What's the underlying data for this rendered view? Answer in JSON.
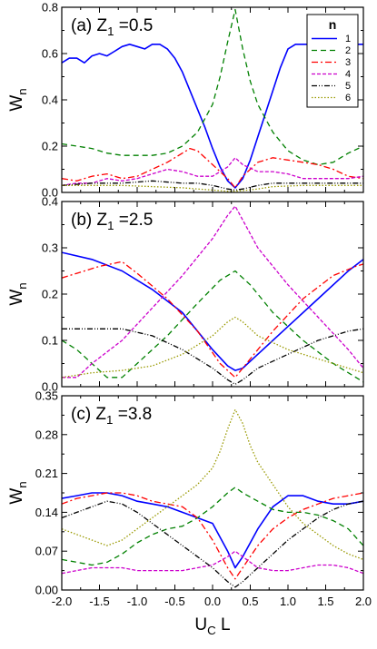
{
  "chart_data": [
    {
      "type": "line",
      "panel_label": "(a) Z",
      "panel_sub": "1",
      "panel_value": " =0.5",
      "ylabel": "W",
      "ylabel_sub": "n",
      "ylim": [
        0,
        0.8
      ],
      "yticks": [
        0.0,
        0.2,
        0.4,
        0.6,
        0.8
      ],
      "ytick_labels": [
        "0.0",
        "0.2",
        "0.4",
        "0.6",
        "0.8"
      ],
      "xlim": [
        -2.0,
        2.0
      ],
      "legend": {
        "title": "n",
        "placement": "top-right",
        "entries": [
          "1",
          "2",
          "3",
          "4",
          "5",
          "6"
        ]
      },
      "series": [
        {
          "name": "1",
          "color": "#0000ff",
          "dash": "",
          "x": [
            -2.0,
            -1.9,
            -1.8,
            -1.7,
            -1.6,
            -1.5,
            -1.4,
            -1.3,
            -1.2,
            -1.1,
            -1.0,
            -0.9,
            -0.8,
            -0.7,
            -0.6,
            -0.5,
            -0.4,
            -0.3,
            -0.2,
            -0.1,
            0.0,
            0.1,
            0.2,
            0.3,
            0.4,
            0.5,
            0.6,
            0.7,
            0.8,
            0.9,
            1.0,
            1.1,
            1.2,
            1.4,
            1.6,
            1.8,
            2.0
          ],
          "y": [
            0.56,
            0.58,
            0.58,
            0.56,
            0.59,
            0.6,
            0.59,
            0.61,
            0.63,
            0.64,
            0.63,
            0.62,
            0.64,
            0.64,
            0.62,
            0.58,
            0.52,
            0.44,
            0.36,
            0.28,
            0.19,
            0.11,
            0.05,
            0.02,
            0.06,
            0.14,
            0.24,
            0.34,
            0.44,
            0.54,
            0.62,
            0.64,
            0.64,
            0.64,
            0.64,
            0.64,
            0.64
          ]
        },
        {
          "name": "2",
          "color": "#008000",
          "dash": "6,4",
          "x": [
            -2.0,
            -1.8,
            -1.6,
            -1.4,
            -1.2,
            -1.0,
            -0.8,
            -0.6,
            -0.4,
            -0.2,
            0.0,
            0.1,
            0.2,
            0.3,
            0.4,
            0.5,
            0.6,
            0.8,
            1.0,
            1.2,
            1.4,
            1.6,
            1.8,
            2.0
          ],
          "y": [
            0.21,
            0.2,
            0.19,
            0.17,
            0.16,
            0.16,
            0.16,
            0.17,
            0.2,
            0.26,
            0.38,
            0.5,
            0.65,
            0.79,
            0.62,
            0.48,
            0.38,
            0.26,
            0.18,
            0.14,
            0.12,
            0.13,
            0.17,
            0.2
          ]
        },
        {
          "name": "3",
          "color": "#ff0000",
          "dash": "7,3,2,3",
          "x": [
            -2.0,
            -1.8,
            -1.6,
            -1.4,
            -1.2,
            -1.0,
            -0.8,
            -0.6,
            -0.4,
            -0.3,
            -0.2,
            0.0,
            0.2,
            0.3,
            0.4,
            0.6,
            0.8,
            1.0,
            1.2,
            1.4,
            1.6,
            1.8,
            2.0
          ],
          "y": [
            0.06,
            0.05,
            0.07,
            0.08,
            0.06,
            0.07,
            0.1,
            0.13,
            0.17,
            0.19,
            0.18,
            0.12,
            0.06,
            0.02,
            0.07,
            0.13,
            0.15,
            0.14,
            0.13,
            0.12,
            0.1,
            0.07,
            0.06
          ]
        },
        {
          "name": "4",
          "color": "#cc00cc",
          "dash": "4,2",
          "x": [
            -2.0,
            -1.8,
            -1.6,
            -1.4,
            -1.2,
            -1.0,
            -0.8,
            -0.6,
            -0.4,
            -0.2,
            0.0,
            0.2,
            0.3,
            0.4,
            0.6,
            0.8,
            1.0,
            1.2,
            1.4,
            1.6,
            1.8,
            2.0
          ],
          "y": [
            0.03,
            0.04,
            0.04,
            0.06,
            0.05,
            0.06,
            0.08,
            0.1,
            0.09,
            0.07,
            0.07,
            0.11,
            0.15,
            0.12,
            0.09,
            0.09,
            0.08,
            0.06,
            0.06,
            0.06,
            0.06,
            0.07
          ]
        },
        {
          "name": "5",
          "color": "#000000",
          "dash": "6,2,1,2,1,2",
          "x": [
            -2.0,
            -1.6,
            -1.2,
            -0.8,
            -0.4,
            -0.2,
            0.0,
            0.2,
            0.3,
            0.4,
            0.6,
            0.8,
            1.2,
            1.6,
            2.0
          ],
          "y": [
            0.03,
            0.04,
            0.04,
            0.05,
            0.04,
            0.04,
            0.03,
            0.015,
            0.01,
            0.015,
            0.03,
            0.04,
            0.04,
            0.04,
            0.04
          ]
        },
        {
          "name": "6",
          "color": "#999900",
          "dash": "1.5,2",
          "x": [
            -2.0,
            -1.6,
            -1.2,
            -0.8,
            -0.4,
            -0.2,
            0.0,
            0.2,
            0.3,
            0.4,
            0.6,
            0.8,
            1.2,
            1.6,
            2.0
          ],
          "y": [
            0.03,
            0.03,
            0.03,
            0.025,
            0.02,
            0.015,
            0.01,
            0.005,
            0.005,
            0.008,
            0.015,
            0.025,
            0.03,
            0.03,
            0.03
          ]
        }
      ]
    },
    {
      "type": "line",
      "panel_label": "(b) Z",
      "panel_sub": "1",
      "panel_value": " =2.5",
      "ylabel": "W",
      "ylabel_sub": "n",
      "ylim": [
        0,
        0.4
      ],
      "yticks": [
        0.0,
        0.1,
        0.2,
        0.3,
        0.4
      ],
      "ytick_labels": [
        "0.0",
        "0.1",
        "0.2",
        "0.3",
        "0.4"
      ],
      "xlim": [
        -2.0,
        2.0
      ],
      "series": [
        {
          "name": "1",
          "color": "#0000ff",
          "dash": "",
          "x": [
            -2.0,
            -1.6,
            -1.2,
            -0.8,
            -0.4,
            0.0,
            0.2,
            0.3,
            0.4,
            0.6,
            1.0,
            1.4,
            1.8,
            2.0
          ],
          "y": [
            0.29,
            0.275,
            0.25,
            0.21,
            0.16,
            0.08,
            0.045,
            0.035,
            0.04,
            0.07,
            0.13,
            0.19,
            0.25,
            0.275
          ]
        },
        {
          "name": "2",
          "color": "#008000",
          "dash": "6,4",
          "x": [
            -2.0,
            -1.8,
            -1.6,
            -1.4,
            -1.2,
            -1.0,
            -0.6,
            -0.2,
            0.1,
            0.3,
            0.5,
            0.8,
            1.2,
            1.6,
            2.0
          ],
          "y": [
            0.1,
            0.08,
            0.05,
            0.02,
            0.02,
            0.05,
            0.11,
            0.18,
            0.23,
            0.25,
            0.22,
            0.16,
            0.1,
            0.05,
            0.01
          ]
        },
        {
          "name": "3",
          "color": "#ff0000",
          "dash": "7,3,2,3",
          "x": [
            -2.0,
            -1.8,
            -1.5,
            -1.2,
            -1.0,
            -0.6,
            -0.2,
            0.1,
            0.3,
            0.5,
            0.8,
            1.2,
            1.6,
            1.9,
            2.0
          ],
          "y": [
            0.235,
            0.245,
            0.26,
            0.27,
            0.245,
            0.19,
            0.12,
            0.05,
            0.02,
            0.06,
            0.12,
            0.19,
            0.24,
            0.26,
            0.265
          ]
        },
        {
          "name": "4",
          "color": "#cc00cc",
          "dash": "4,2",
          "x": [
            -2.0,
            -1.8,
            -1.6,
            -1.2,
            -0.8,
            -0.4,
            0.0,
            0.2,
            0.3,
            0.4,
            0.6,
            1.0,
            1.4,
            1.8,
            2.0
          ],
          "y": [
            0.02,
            0.02,
            0.05,
            0.1,
            0.17,
            0.24,
            0.32,
            0.37,
            0.39,
            0.36,
            0.3,
            0.22,
            0.15,
            0.08,
            0.04
          ]
        },
        {
          "name": "5",
          "color": "#000000",
          "dash": "6,2,1,2,1,2",
          "x": [
            -2.0,
            -1.6,
            -1.2,
            -0.8,
            -0.4,
            0.0,
            0.2,
            0.3,
            0.4,
            0.6,
            1.0,
            1.4,
            1.8,
            2.0
          ],
          "y": [
            0.125,
            0.125,
            0.125,
            0.11,
            0.08,
            0.04,
            0.015,
            0.005,
            0.015,
            0.04,
            0.07,
            0.1,
            0.12,
            0.125
          ]
        },
        {
          "name": "6",
          "color": "#999900",
          "dash": "1.5,2",
          "x": [
            -2.0,
            -1.6,
            -1.2,
            -0.8,
            -0.4,
            0.0,
            0.2,
            0.3,
            0.4,
            0.6,
            1.0,
            1.4,
            1.8,
            2.0
          ],
          "y": [
            0.02,
            0.03,
            0.035,
            0.045,
            0.07,
            0.11,
            0.14,
            0.15,
            0.14,
            0.11,
            0.08,
            0.06,
            0.04,
            0.03
          ]
        }
      ]
    },
    {
      "type": "line",
      "panel_label": "(c) Z",
      "panel_sub": "1",
      "panel_value": " =3.8",
      "ylabel": "W",
      "ylabel_sub": "n",
      "ylim": [
        0,
        0.35
      ],
      "yticks": [
        0.0,
        0.07,
        0.14,
        0.21,
        0.28,
        0.35
      ],
      "ytick_labels": [
        "0.00",
        "0.07",
        "0.14",
        "0.21",
        "0.28",
        "0.35"
      ],
      "xlim": [
        -2.0,
        2.0
      ],
      "xticks": [
        -2.0,
        -1.5,
        -1.0,
        -0.5,
        0.0,
        0.5,
        1.0,
        1.5,
        2.0
      ],
      "xtick_labels": [
        "-2.0",
        "-1.5",
        "-1.0",
        "-0.5",
        "0.0",
        "0.5",
        "1.0",
        "1.5",
        "2.0"
      ],
      "xlabel": "U",
      "xlabel_sub": "C",
      "xlabel_tail": " L",
      "series": [
        {
          "name": "1",
          "color": "#0000ff",
          "dash": "",
          "x": [
            -2.0,
            -1.8,
            -1.6,
            -1.4,
            -1.2,
            -1.0,
            -0.8,
            -0.6,
            -0.4,
            -0.2,
            0.0,
            0.2,
            0.3,
            0.4,
            0.6,
            0.8,
            1.0,
            1.2,
            1.4,
            1.6,
            1.8,
            2.0
          ],
          "y": [
            0.165,
            0.17,
            0.175,
            0.175,
            0.17,
            0.16,
            0.155,
            0.15,
            0.14,
            0.13,
            0.12,
            0.07,
            0.04,
            0.06,
            0.11,
            0.15,
            0.17,
            0.17,
            0.16,
            0.155,
            0.155,
            0.16
          ]
        },
        {
          "name": "2",
          "color": "#008000",
          "dash": "6,4",
          "x": [
            -2.0,
            -1.8,
            -1.6,
            -1.4,
            -1.2,
            -1.0,
            -0.8,
            -0.6,
            -0.4,
            -0.2,
            0.0,
            0.2,
            0.3,
            0.4,
            0.6,
            0.8,
            1.0,
            1.2,
            1.4,
            1.6,
            1.8,
            2.0
          ],
          "y": [
            0.055,
            0.05,
            0.045,
            0.05,
            0.065,
            0.085,
            0.1,
            0.11,
            0.115,
            0.13,
            0.15,
            0.175,
            0.185,
            0.175,
            0.16,
            0.145,
            0.14,
            0.14,
            0.135,
            0.125,
            0.11,
            0.08
          ]
        },
        {
          "name": "3",
          "color": "#ff0000",
          "dash": "7,3,2,3",
          "x": [
            -2.0,
            -1.8,
            -1.6,
            -1.4,
            -1.2,
            -1.0,
            -0.8,
            -0.6,
            -0.4,
            -0.2,
            0.0,
            0.2,
            0.3,
            0.4,
            0.6,
            0.8,
            1.0,
            1.2,
            1.4,
            1.6,
            1.8,
            2.0
          ],
          "y": [
            0.155,
            0.165,
            0.17,
            0.175,
            0.175,
            0.17,
            0.16,
            0.155,
            0.15,
            0.13,
            0.09,
            0.04,
            0.02,
            0.04,
            0.08,
            0.11,
            0.13,
            0.145,
            0.155,
            0.165,
            0.17,
            0.175
          ]
        },
        {
          "name": "4",
          "color": "#cc00cc",
          "dash": "4,2",
          "x": [
            -2.0,
            -1.8,
            -1.6,
            -1.4,
            -1.2,
            -1.0,
            -0.8,
            -0.6,
            -0.4,
            -0.2,
            0.0,
            0.2,
            0.3,
            0.4,
            0.6,
            0.8,
            1.0,
            1.2,
            1.4,
            1.6,
            1.8,
            2.0
          ],
          "y": [
            0.03,
            0.035,
            0.04,
            0.04,
            0.04,
            0.035,
            0.035,
            0.035,
            0.035,
            0.04,
            0.045,
            0.06,
            0.07,
            0.06,
            0.04,
            0.035,
            0.035,
            0.04,
            0.045,
            0.045,
            0.04,
            0.03
          ]
        },
        {
          "name": "5",
          "color": "#000000",
          "dash": "6,2,1,2,1,2",
          "x": [
            -2.0,
            -1.8,
            -1.6,
            -1.4,
            -1.2,
            -1.0,
            -0.8,
            -0.6,
            -0.4,
            -0.2,
            0.0,
            0.2,
            0.3,
            0.4,
            0.6,
            0.8,
            1.0,
            1.2,
            1.4,
            1.6,
            1.8,
            2.0
          ],
          "y": [
            0.13,
            0.14,
            0.15,
            0.16,
            0.155,
            0.14,
            0.12,
            0.1,
            0.08,
            0.06,
            0.04,
            0.015,
            0.005,
            0.015,
            0.04,
            0.065,
            0.09,
            0.11,
            0.13,
            0.145,
            0.155,
            0.16
          ]
        },
        {
          "name": "6",
          "color": "#999900",
          "dash": "1.5,2",
          "x": [
            -2.0,
            -1.8,
            -1.6,
            -1.4,
            -1.2,
            -1.0,
            -0.8,
            -0.6,
            -0.4,
            -0.2,
            0.0,
            0.1,
            0.2,
            0.3,
            0.4,
            0.5,
            0.6,
            0.8,
            1.0,
            1.2,
            1.4,
            1.6,
            1.8,
            2.0
          ],
          "y": [
            0.11,
            0.1,
            0.09,
            0.08,
            0.09,
            0.11,
            0.13,
            0.15,
            0.17,
            0.19,
            0.22,
            0.25,
            0.29,
            0.325,
            0.3,
            0.26,
            0.23,
            0.19,
            0.15,
            0.12,
            0.1,
            0.08,
            0.065,
            0.055
          ]
        }
      ]
    }
  ]
}
